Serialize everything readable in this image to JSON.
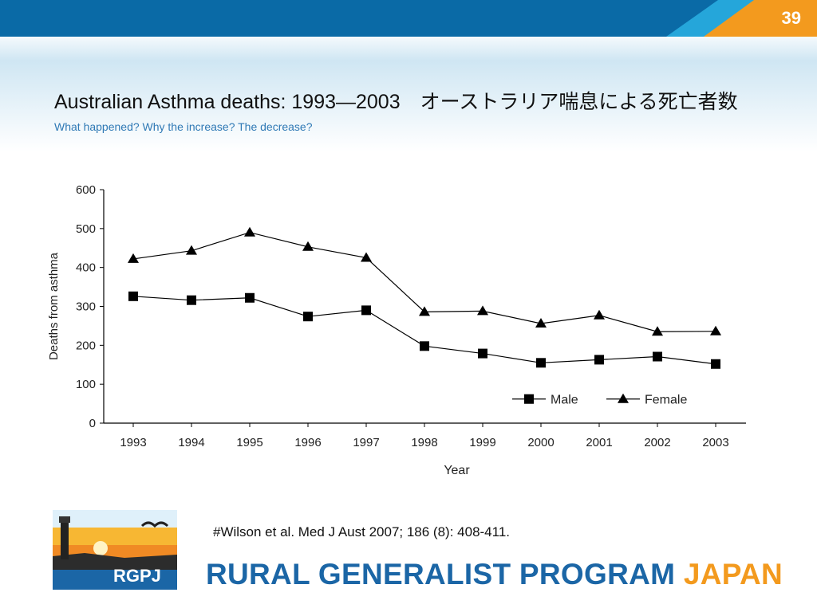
{
  "slide": {
    "number": "39",
    "title": "Australian Asthma deaths: 1993—2003　オーストラリア喘息による死亡者数",
    "subtitle": "What happened? Why the increase? The decrease?",
    "citation": "#Wilson et al. Med J Aust 2007; 186 (8): 408-411.",
    "logo_text": "RGPJ",
    "program_name_main": "RURAL GENERALIST PROGRAM",
    "program_name_accent": "JAPAN",
    "colors": {
      "header_blue": "#0a6aa6",
      "header_light_blue": "#25a6da",
      "accent_orange": "#f39a1e",
      "program_blue": "#1b66a6",
      "subtitle_blue": "#2f79b5"
    }
  },
  "chart_data": {
    "type": "line",
    "title": "",
    "xlabel": "Year",
    "ylabel": "Deaths from asthma",
    "ylim": [
      0,
      600
    ],
    "yticks": [
      "0",
      "100",
      "200",
      "300",
      "400",
      "500",
      "600"
    ],
    "categories": [
      "1993",
      "1994",
      "1995",
      "1996",
      "1997",
      "1998",
      "1999",
      "2000",
      "2001",
      "2002",
      "2003"
    ],
    "series": [
      {
        "name": "Male",
        "marker": "square",
        "values": [
          326,
          316,
          322,
          274,
          290,
          198,
          179,
          155,
          163,
          171,
          152
        ]
      },
      {
        "name": "Female",
        "marker": "triangle",
        "values": [
          422,
          443,
          490,
          453,
          425,
          286,
          288,
          256,
          277,
          235,
          236
        ]
      }
    ],
    "grid": false,
    "legend_position": "bottom-right"
  }
}
